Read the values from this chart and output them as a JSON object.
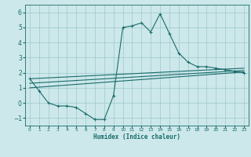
{
  "xlabel": "Humidex (Indice chaleur)",
  "bg_color": "#cce8ea",
  "line_color": "#1a6b6b",
  "grid_color": "#9dc8cc",
  "xlim": [
    -0.5,
    23.5
  ],
  "ylim": [
    -1.5,
    6.5
  ],
  "yticks": [
    -1,
    0,
    1,
    2,
    3,
    4,
    5,
    6
  ],
  "xtick_labels": [
    "0",
    "1",
    "2",
    "3",
    "4",
    "5",
    "6",
    "7",
    "8",
    "9",
    "10",
    "11",
    "12",
    "13",
    "14",
    "15",
    "16",
    "17",
    "18",
    "19",
    "20",
    "21",
    "22",
    "23"
  ],
  "main_x": [
    0,
    1,
    2,
    3,
    4,
    5,
    6,
    7,
    8,
    9,
    10,
    11,
    12,
    13,
    14,
    15,
    16,
    17,
    18,
    19,
    20,
    21,
    22,
    23
  ],
  "main_y": [
    1.6,
    0.8,
    0.0,
    -0.2,
    -0.2,
    -0.3,
    -0.7,
    -1.1,
    -1.1,
    0.5,
    5.0,
    5.1,
    5.3,
    4.7,
    5.9,
    4.6,
    3.3,
    2.7,
    2.4,
    2.4,
    2.3,
    2.2,
    2.1,
    2.0
  ],
  "line1_y": [
    1.6,
    2.3
  ],
  "line2_y": [
    1.3,
    2.15
  ],
  "line3_y": [
    1.0,
    2.05
  ]
}
